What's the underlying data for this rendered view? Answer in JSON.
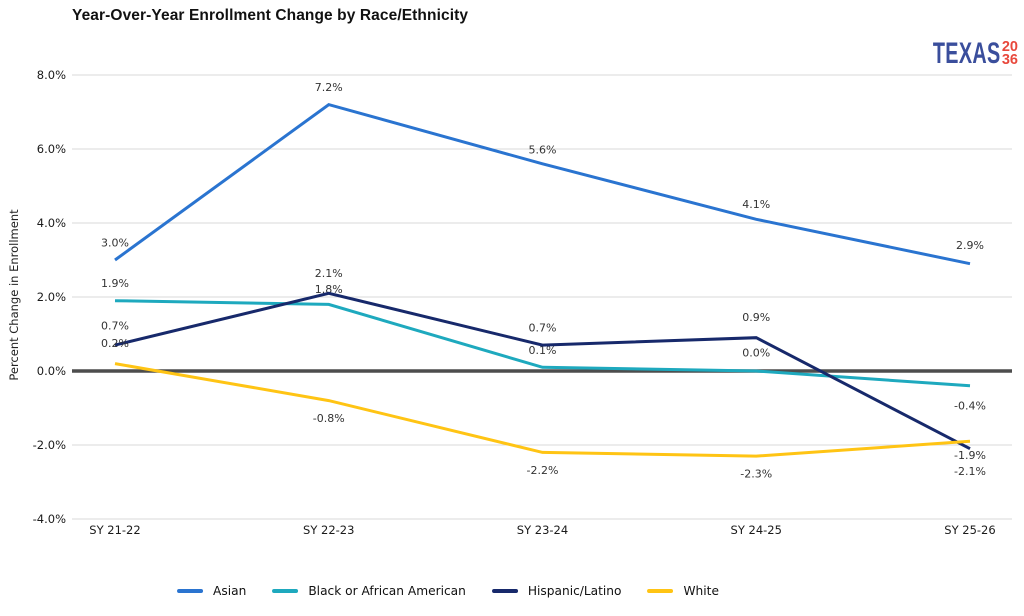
{
  "branding": {
    "logo_text": "TEXAS",
    "logo_year_top": "20",
    "logo_year_bottom": "36",
    "logo_blue": "#3A4E9C",
    "logo_red": "#E8483C"
  },
  "chart_data": {
    "type": "line",
    "title": "Year-Over-Year Enrollment Change by Race/Ethnicity",
    "ylabel": "Percent Change in Enrollment",
    "xlabel": "",
    "categories": [
      "SY 21-22",
      "SY 22-23",
      "SY 23-24",
      "SY 24-25",
      "SY 25-26"
    ],
    "ylim": [
      -4,
      8
    ],
    "ytick_labels": [
      "8.0%",
      "6.0%",
      "4.0%",
      "2.0%",
      "0.0%",
      "-2.0%",
      "-4.0%"
    ],
    "grid": "horizontal-only",
    "zero_line": true,
    "legend_position": "bottom",
    "colors": {
      "grid": "#D9D9D9",
      "zero_line": "#4D4D4D",
      "tick_text": "#1A1A1A",
      "data_label_text": "#333333"
    },
    "series": [
      {
        "name": "Asian",
        "color": "#2A74D0",
        "values": [
          3.0,
          7.2,
          5.6,
          4.1,
          2.9
        ],
        "point_labels": [
          "3.0%",
          "7.2%",
          "5.6%",
          "4.1%",
          "2.9%"
        ],
        "label_dy": [
          -17,
          -17,
          -14,
          -15,
          -18
        ]
      },
      {
        "name": "Black or African American",
        "color": "#1EA9BE",
        "values": [
          1.9,
          1.8,
          0.1,
          0.0,
          -0.4
        ],
        "point_labels": [
          "1.9%",
          "1.8%",
          "0.1%",
          "0.0%",
          "-0.4%"
        ],
        "label_dy": [
          -17,
          -15,
          -17,
          -18,
          20
        ]
      },
      {
        "name": "Hispanic/Latino",
        "color": "#17296B",
        "values": [
          0.7,
          2.1,
          0.7,
          0.9,
          -2.1
        ],
        "point_labels": [
          "0.7%",
          "2.1%",
          "0.7%",
          "0.9%",
          "-2.1%"
        ],
        "label_dy": [
          -19,
          -20,
          -17,
          -20,
          23
        ]
      },
      {
        "name": "White",
        "color": "#FFC414",
        "values": [
          0.2,
          -0.8,
          -2.2,
          -2.3,
          -1.9
        ],
        "point_labels": [
          "0.2%",
          "-0.8%",
          "-2.2%",
          "-2.3%",
          "-1.9%"
        ],
        "label_dy": [
          -20,
          18,
          18,
          18,
          14
        ]
      }
    ]
  }
}
